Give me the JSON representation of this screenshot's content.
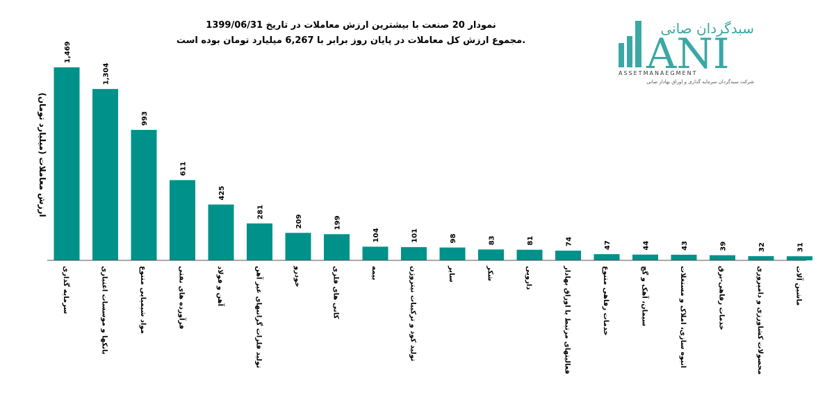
{
  "colors": {
    "bar": "#00918a",
    "axis": "#555555",
    "logo": "#3aa8a4"
  },
  "logo": {
    "fa_text": "سبدگردان صانی",
    "latin_text": "ANI",
    "sub_text": "ASSETMANAEGMENT",
    "tagline": "شرکت سبدگردان سرمایه گذاری و اوراق بهادار صانی"
  },
  "chart_data": {
    "type": "bar",
    "title": "نمودار  20 صنعت با بیشترین ارزش معاملات در تاریخ 1399/06/31",
    "subtitle": "مجموع ارزش  کل معاملات در پایان روز برابر با 6,267 میلیارد تومان بوده است.",
    "xlabel": "",
    "ylabel": "ارزش معاملات (میلیارد تومان)",
    "ylim": [
      0,
      1600
    ],
    "grid": false,
    "legend": "none",
    "categories": [
      "سرمایه گذاری",
      "بانکها و موسسات اعتباری",
      "مواد شیمیایی متنوع",
      "فرآورده های نفتی",
      "آهن و فولاد",
      "تولید فلزات گرانبهای غیر آهن",
      "خودرو",
      "کانی های فلزی",
      "بیمه",
      "تولید کود و ترکیبات نیتروژن",
      "سایر",
      "شکر",
      "دارویی",
      "فعالیتهای مرتبط با اوراق بهادار",
      "خدمات رفاهی متنوع",
      "سیمان، آهک و گچ",
      "انبوه سازی، املاک و مستغلات",
      "خدمات رفاهی-برق",
      "محصولات کشاورزی و دامپروری",
      "ماشین آلات"
    ],
    "values": [
      1469,
      1304,
      993,
      611,
      425,
      281,
      209,
      199,
      104,
      101,
      98,
      83,
      81,
      74,
      47,
      44,
      43,
      39,
      32,
      31
    ],
    "value_labels": [
      "1,469",
      "1,304",
      "993",
      "611",
      "425",
      "281",
      "209",
      "199",
      "104",
      "101",
      "98",
      "83",
      "81",
      "74",
      "47",
      "44",
      "43",
      "39",
      "32",
      "31"
    ]
  }
}
